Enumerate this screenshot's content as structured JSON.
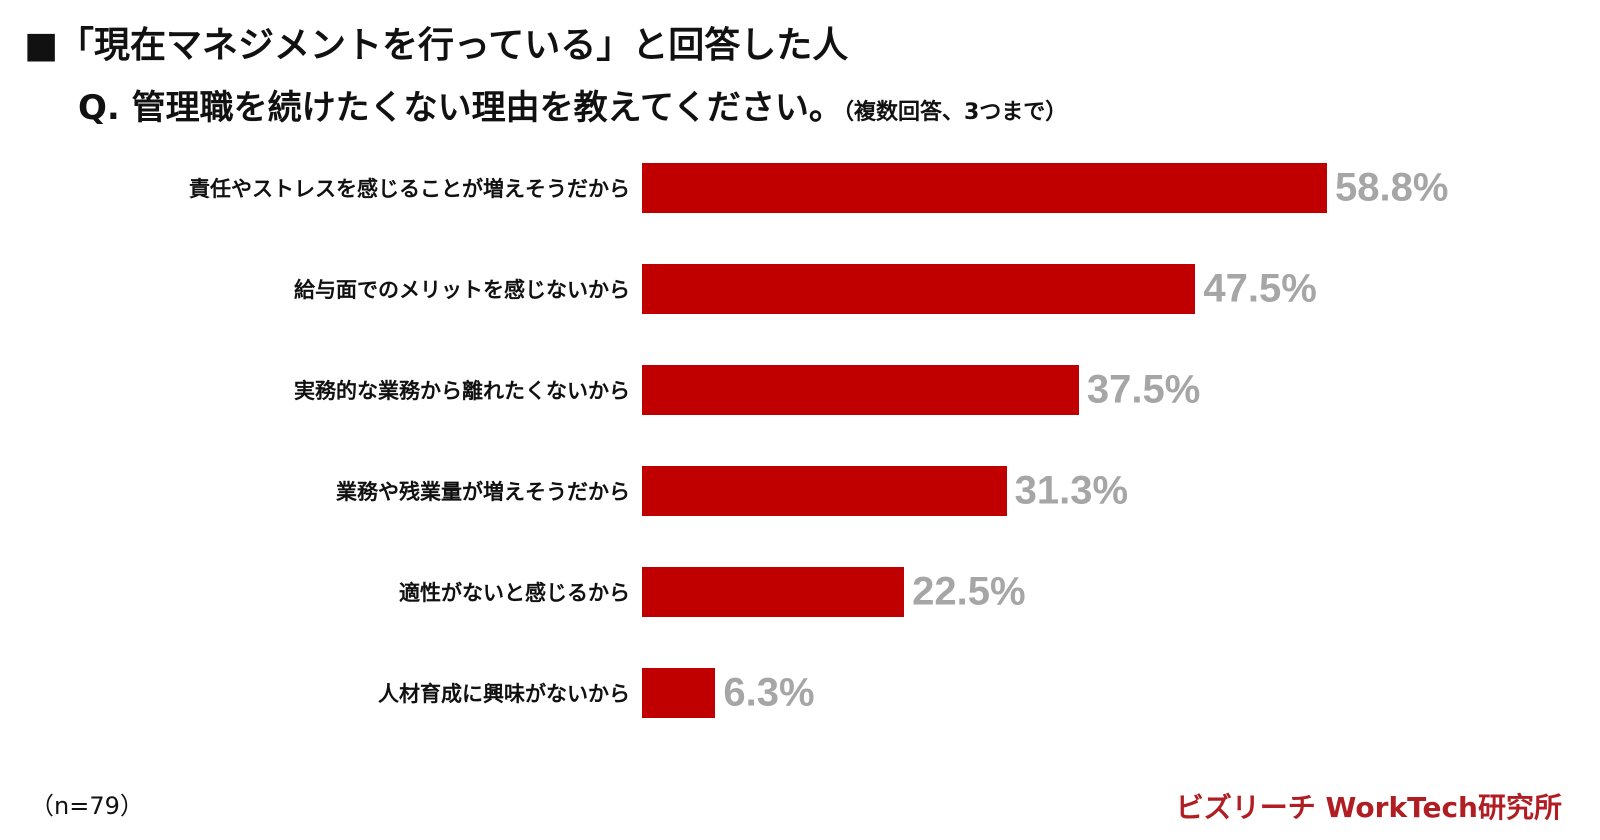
{
  "header": {
    "title": "■「現在マネジメントを行っている」と回答した人",
    "question": "Q. 管理職を続けたくない理由を教えてください。",
    "question_note": "（複数回答、3つまで）"
  },
  "footer": {
    "sample_size": "（n=79）",
    "brand": "ビズリーチ WorkTech研究所"
  },
  "colors": {
    "bar": "#c00000",
    "value_label": "#a6a6a6",
    "brand": "#b01e23"
  },
  "chart_data": {
    "type": "bar",
    "orientation": "horizontal",
    "categories": [
      "責任やストレスを感じることが増えそうだから",
      "給与面でのメリットを感じないから",
      "実務的な業務から離れたくないから",
      "業務や残業量が増えそうだから",
      "適性がないと感じるから",
      "人材育成に興味がないから"
    ],
    "values": [
      58.8,
      47.5,
      37.5,
      31.3,
      22.5,
      6.3
    ],
    "value_labels": [
      "58.8%",
      "47.5%",
      "37.5%",
      "31.3%",
      "22.5%",
      "6.3%"
    ],
    "unit": "%",
    "xlim": [
      0,
      100
    ],
    "grid": false,
    "legend": "none"
  }
}
